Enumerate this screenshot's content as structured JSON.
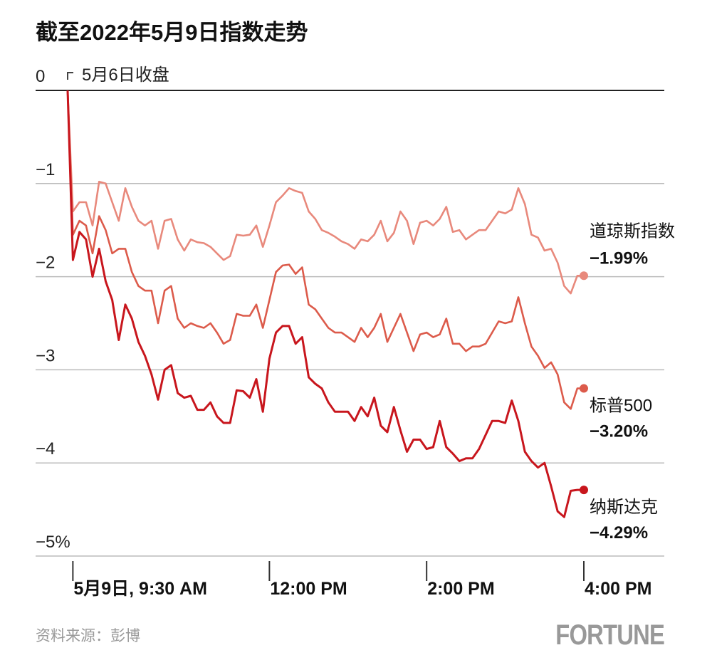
{
  "chart_data": {
    "type": "line",
    "title": "截至2022年5月9日指数走势",
    "annotation": "5月6日收盘",
    "source": "资料来源：彭博",
    "logo": "FORTUNE",
    "x": [
      -4,
      0,
      5,
      10,
      15,
      20,
      25,
      30,
      35,
      40,
      45,
      50,
      55,
      60,
      65,
      70,
      75,
      80,
      85,
      90,
      95,
      100,
      105,
      110,
      115,
      120,
      125,
      130,
      135,
      140,
      145,
      150,
      155,
      160,
      165,
      170,
      175,
      180,
      185,
      190,
      195,
      200,
      205,
      210,
      215,
      220,
      225,
      230,
      235,
      240,
      245,
      250,
      255,
      260,
      265,
      270,
      275,
      280,
      285,
      290,
      295,
      300,
      305,
      310,
      315,
      320,
      325,
      330,
      335,
      340,
      345,
      350,
      355,
      360,
      365,
      370,
      375,
      380,
      385,
      390
    ],
    "xlim": [
      -4,
      390
    ],
    "xticks": [
      {
        "value": 0,
        "label": "5月9日, 9:30 AM"
      },
      {
        "value": 150,
        "label": "12:00 PM"
      },
      {
        "value": 270,
        "label": "2:00 PM"
      },
      {
        "value": 390,
        "label": "4:00 PM"
      }
    ],
    "ylim": [
      -5,
      0
    ],
    "yticks": [
      0,
      {
        "value": -1,
        "label": "−1"
      },
      {
        "value": -2,
        "label": "−2"
      },
      {
        "value": -3,
        "label": "−3"
      },
      {
        "value": -4,
        "label": "−4"
      },
      {
        "value": -5,
        "label": "−5%"
      }
    ],
    "grid": true,
    "series": [
      {
        "name": "道琼斯指数",
        "color": "#e8897c",
        "values": [
          0,
          -1.3,
          -1.2,
          -1.2,
          -1.45,
          -0.98,
          -1.0,
          -1.2,
          -1.4,
          -1.05,
          -1.25,
          -1.4,
          -1.45,
          -1.4,
          -1.7,
          -1.4,
          -1.38,
          -1.6,
          -1.72,
          -1.6,
          -1.63,
          -1.64,
          -1.68,
          -1.75,
          -1.82,
          -1.78,
          -1.55,
          -1.56,
          -1.55,
          -1.45,
          -1.68,
          -1.45,
          -1.2,
          -1.13,
          -1.05,
          -1.08,
          -1.1,
          -1.3,
          -1.38,
          -1.5,
          -1.53,
          -1.57,
          -1.62,
          -1.65,
          -1.7,
          -1.6,
          -1.62,
          -1.55,
          -1.4,
          -1.62,
          -1.53,
          -1.3,
          -1.4,
          -1.65,
          -1.42,
          -1.4,
          -1.45,
          -1.38,
          -1.25,
          -1.52,
          -1.5,
          -1.6,
          -1.55,
          -1.5,
          -1.5,
          -1.4,
          -1.3,
          -1.32,
          -1.28,
          -1.05,
          -1.22,
          -1.55,
          -1.58,
          -1.72,
          -1.7,
          -1.85,
          -2.1,
          -2.18,
          -1.99,
          -1.99
        ],
        "value_labels": [
          null,
          null,
          null,
          null,
          null,
          null,
          null,
          null,
          null,
          null,
          null,
          null,
          null,
          null,
          null,
          null,
          null,
          null,
          null,
          null,
          null,
          null,
          null,
          null,
          null,
          null,
          null,
          null,
          null,
          null,
          null,
          null,
          null,
          null,
          null,
          null,
          null,
          null,
          null,
          null,
          null,
          null,
          null,
          null,
          null,
          null,
          null,
          null,
          null,
          null,
          null,
          null,
          null,
          null,
          null,
          null,
          null,
          null,
          null,
          null,
          null,
          null,
          null,
          null,
          null,
          null,
          null,
          null,
          null,
          null,
          null,
          null,
          null,
          null,
          null,
          null,
          null,
          null,
          null,
          "−1.99%"
        ]
      },
      {
        "name": "标普500",
        "color": "#dc5b4b",
        "values": [
          0,
          -1.55,
          -1.4,
          -1.45,
          -1.75,
          -1.35,
          -1.5,
          -1.75,
          -1.7,
          -1.7,
          -1.95,
          -2.1,
          -2.15,
          -2.15,
          -2.5,
          -2.15,
          -2.1,
          -2.45,
          -2.55,
          -2.5,
          -2.53,
          -2.55,
          -2.5,
          -2.6,
          -2.72,
          -2.68,
          -2.4,
          -2.42,
          -2.42,
          -2.3,
          -2.55,
          -2.25,
          -1.95,
          -1.88,
          -1.87,
          -1.97,
          -1.9,
          -2.3,
          -2.35,
          -2.45,
          -2.55,
          -2.6,
          -2.6,
          -2.65,
          -2.7,
          -2.55,
          -2.65,
          -2.55,
          -2.4,
          -2.7,
          -2.55,
          -2.4,
          -2.6,
          -2.8,
          -2.62,
          -2.6,
          -2.65,
          -2.62,
          -2.45,
          -2.72,
          -2.72,
          -2.8,
          -2.75,
          -2.75,
          -2.72,
          -2.6,
          -2.48,
          -2.5,
          -2.48,
          -2.22,
          -2.5,
          -2.75,
          -2.85,
          -2.98,
          -2.92,
          -3.05,
          -3.35,
          -3.42,
          -3.2,
          -3.2
        ],
        "value_labels": [
          null,
          null,
          null,
          null,
          null,
          null,
          null,
          null,
          null,
          null,
          null,
          null,
          null,
          null,
          null,
          null,
          null,
          null,
          null,
          null,
          null,
          null,
          null,
          null,
          null,
          null,
          null,
          null,
          null,
          null,
          null,
          null,
          null,
          null,
          null,
          null,
          null,
          null,
          null,
          null,
          null,
          null,
          null,
          null,
          null,
          null,
          null,
          null,
          null,
          null,
          null,
          null,
          null,
          null,
          null,
          null,
          null,
          null,
          null,
          null,
          null,
          null,
          null,
          null,
          null,
          null,
          null,
          null,
          null,
          null,
          null,
          null,
          null,
          null,
          null,
          null,
          null,
          null,
          null,
          "−3.20%"
        ]
      },
      {
        "name": "纳斯达克",
        "color": "#c8161d",
        "values": [
          0,
          -1.82,
          -1.52,
          -1.6,
          -2.0,
          -1.7,
          -2.05,
          -2.25,
          -2.68,
          -2.3,
          -2.45,
          -2.7,
          -2.85,
          -3.05,
          -3.32,
          -3.0,
          -2.95,
          -3.25,
          -3.3,
          -3.28,
          -3.43,
          -3.43,
          -3.35,
          -3.5,
          -3.57,
          -3.57,
          -3.22,
          -3.23,
          -3.3,
          -3.1,
          -3.45,
          -2.88,
          -2.6,
          -2.53,
          -2.53,
          -2.72,
          -2.65,
          -3.08,
          -3.15,
          -3.2,
          -3.35,
          -3.45,
          -3.45,
          -3.45,
          -3.55,
          -3.4,
          -3.5,
          -3.3,
          -3.6,
          -3.67,
          -3.4,
          -3.65,
          -3.88,
          -3.75,
          -3.75,
          -3.85,
          -3.83,
          -3.55,
          -3.83,
          -3.9,
          -3.98,
          -3.95,
          -3.95,
          -3.85,
          -3.7,
          -3.55,
          -3.55,
          -3.57,
          -3.33,
          -3.55,
          -3.88,
          -3.98,
          -4.05,
          -4.0,
          -4.25,
          -4.52,
          -4.58,
          -4.3,
          -4.29,
          -4.29
        ],
        "value_labels": [
          null,
          null,
          null,
          null,
          null,
          null,
          null,
          null,
          null,
          null,
          null,
          null,
          null,
          null,
          null,
          null,
          null,
          null,
          null,
          null,
          null,
          null,
          null,
          null,
          null,
          null,
          null,
          null,
          null,
          null,
          null,
          null,
          null,
          null,
          null,
          null,
          null,
          null,
          null,
          null,
          null,
          null,
          null,
          null,
          null,
          null,
          null,
          null,
          null,
          null,
          null,
          null,
          null,
          null,
          null,
          null,
          null,
          null,
          null,
          null,
          null,
          null,
          null,
          null,
          null,
          null,
          null,
          null,
          null,
          null,
          null,
          null,
          null,
          null,
          null,
          null,
          null,
          null,
          null,
          "−4.29%"
        ]
      }
    ]
  }
}
